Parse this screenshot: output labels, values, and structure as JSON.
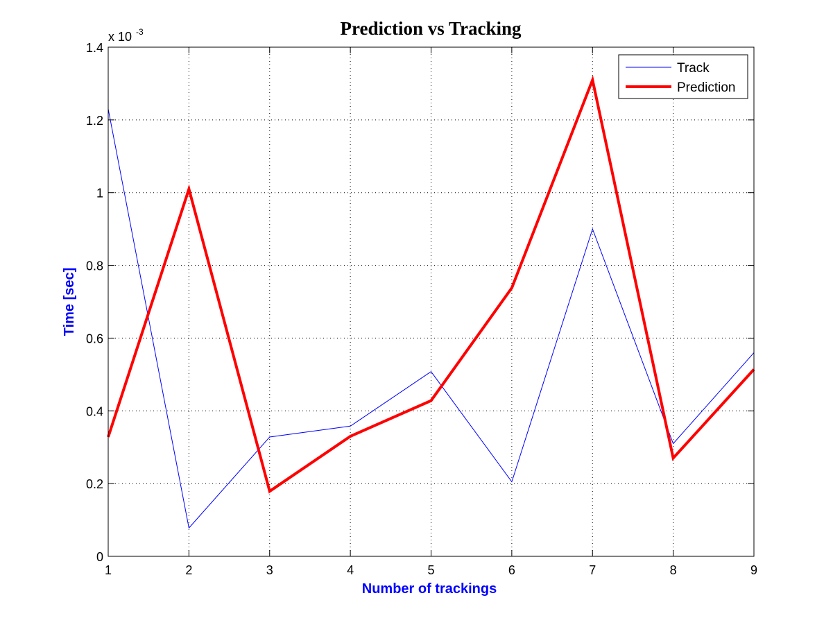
{
  "chart_data": {
    "type": "line",
    "title": "Prediction vs Tracking",
    "xlabel": "Number of trackings",
    "ylabel": "Time [sec]",
    "xlabel_color": "#0000ff",
    "ylabel_color": "#0000ff",
    "y_exponent": "x 10",
    "y_exponent_power": "-3",
    "x": [
      1,
      2,
      3,
      4,
      5,
      6,
      7,
      8,
      9
    ],
    "xlim": [
      1,
      9
    ],
    "ylim": [
      0,
      1.4
    ],
    "x_ticks": [
      1,
      2,
      3,
      4,
      5,
      6,
      7,
      8,
      9
    ],
    "x_tick_labels": [
      "1",
      "2",
      "3",
      "4",
      "5",
      "6",
      "7",
      "8",
      "9"
    ],
    "y_ticks": [
      0,
      0.2,
      0.4,
      0.6,
      0.8,
      1.0,
      1.2,
      1.4
    ],
    "y_tick_labels": [
      "0",
      "0.2",
      "0.4",
      "0.6",
      "0.8",
      "1",
      "1.2",
      "1.4"
    ],
    "grid": true,
    "legend_position": "top-right",
    "series": [
      {
        "name": "Track",
        "color": "#0000ff",
        "line_weight": "thin",
        "values": [
          1.23,
          0.078,
          0.328,
          0.358,
          0.508,
          0.205,
          0.9,
          0.31,
          0.56
        ]
      },
      {
        "name": "Prediction",
        "color": "#ff0000",
        "line_weight": "thick",
        "values": [
          0.328,
          1.01,
          0.179,
          0.33,
          0.428,
          0.738,
          1.31,
          0.27,
          0.514
        ]
      }
    ]
  }
}
